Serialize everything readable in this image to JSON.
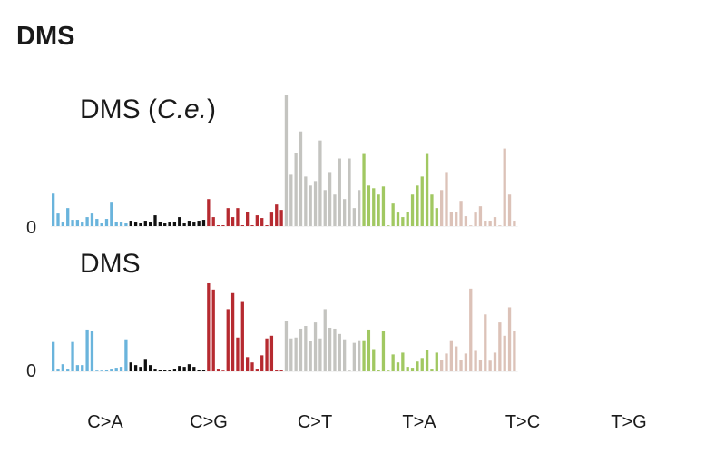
{
  "heading": "DMS",
  "chart_data": {
    "type": "bar",
    "mutation_classes": [
      "C>A",
      "C>G",
      "C>T",
      "T>A",
      "T>C",
      "T>G"
    ],
    "class_colors": [
      "#6ab4dc",
      "#111111",
      "#b62a30",
      "#c4c4c0",
      "#a1c862",
      "#dcc2b8"
    ],
    "bars_per_class": 16,
    "zero_tick_label": "0",
    "panels": [
      {
        "title_main": "DMS (",
        "title_italic": "C.e.",
        "title_end": ")",
        "ymax": 145,
        "values": [
          [
            36,
            14,
            4,
            20,
            7,
            7,
            4,
            10,
            14,
            8,
            3,
            8,
            26,
            5,
            4,
            3
          ],
          [
            6,
            4,
            3,
            6,
            4,
            12,
            5,
            3,
            4,
            5,
            10,
            3,
            6,
            4,
            6,
            7
          ],
          [
            30,
            10,
            1,
            1,
            20,
            10,
            20,
            1,
            16,
            1,
            12,
            9,
            1,
            15,
            24,
            18
          ],
          [
            145,
            57,
            81,
            105,
            55,
            45,
            50,
            95,
            40,
            60,
            35,
            75,
            30,
            75,
            20,
            40
          ],
          [
            80,
            45,
            42,
            35,
            44,
            0,
            25,
            15,
            10,
            16,
            35,
            45,
            55,
            80,
            35,
            20
          ],
          [
            40,
            60,
            16,
            16,
            28,
            11,
            0,
            15,
            22,
            6,
            6,
            10,
            0,
            86,
            35,
            6
          ]
        ]
      },
      {
        "title_main": "DMS",
        "title_italic": "",
        "title_end": "",
        "ymax": 100,
        "values": [
          [
            33,
            3,
            8,
            3,
            33,
            7,
            7,
            47,
            45,
            0,
            0,
            1,
            3,
            4,
            5,
            36
          ],
          [
            10,
            7,
            5,
            14,
            7,
            3,
            1,
            2,
            1,
            3,
            6,
            5,
            8,
            5,
            2,
            2
          ],
          [
            99,
            92,
            3,
            0,
            70,
            88,
            38,
            78,
            16,
            10,
            3,
            18,
            37,
            40,
            1,
            1
          ],
          [
            57,
            37,
            38,
            48,
            51,
            34,
            55,
            37,
            70,
            49,
            48,
            42,
            36,
            0,
            32,
            35
          ],
          [
            35,
            47,
            25,
            2,
            45,
            0,
            19,
            10,
            21,
            5,
            4,
            11,
            15,
            24,
            3,
            21
          ],
          [
            13,
            20,
            35,
            28,
            13,
            20,
            93,
            23,
            13,
            64,
            12,
            21,
            55,
            40,
            72,
            45
          ]
        ]
      }
    ]
  }
}
